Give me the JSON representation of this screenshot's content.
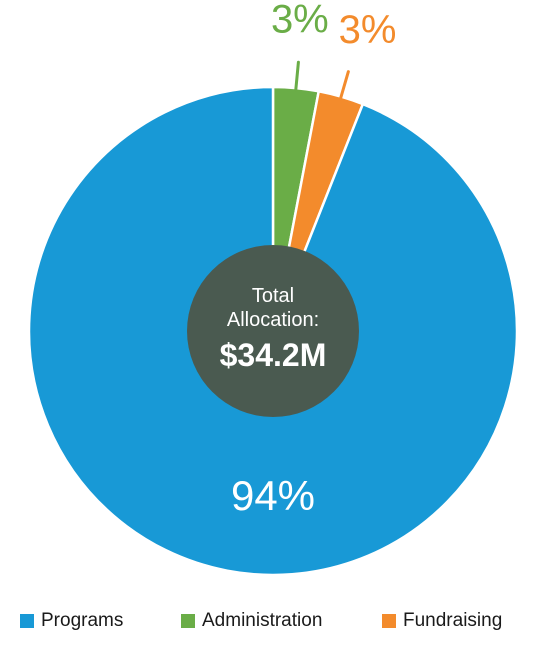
{
  "chart_data": {
    "type": "pie",
    "categories": [
      "Programs",
      "Administration",
      "Fundraising"
    ],
    "values": [
      94,
      3,
      3
    ],
    "value_labels": [
      "94%",
      "3%",
      "3%"
    ],
    "colors": [
      "#1899d6",
      "#6aad47",
      "#f38b2c"
    ],
    "center_label": {
      "line1": "Total",
      "line2": "Allocation:",
      "value": "$34.2M",
      "color": "#4a5a50"
    },
    "legend_position": "bottom"
  }
}
